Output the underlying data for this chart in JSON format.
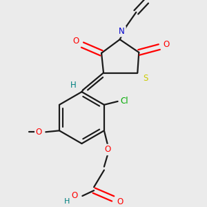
{
  "bg_color": "#ebebeb",
  "bond_color": "#1a1a1a",
  "atom_colors": {
    "O": "#ff0000",
    "N": "#0000cc",
    "S": "#cccc00",
    "Cl": "#00aa00",
    "H": "#008080",
    "C": "#1a1a1a"
  },
  "lw": 1.6,
  "fs": 8.5
}
